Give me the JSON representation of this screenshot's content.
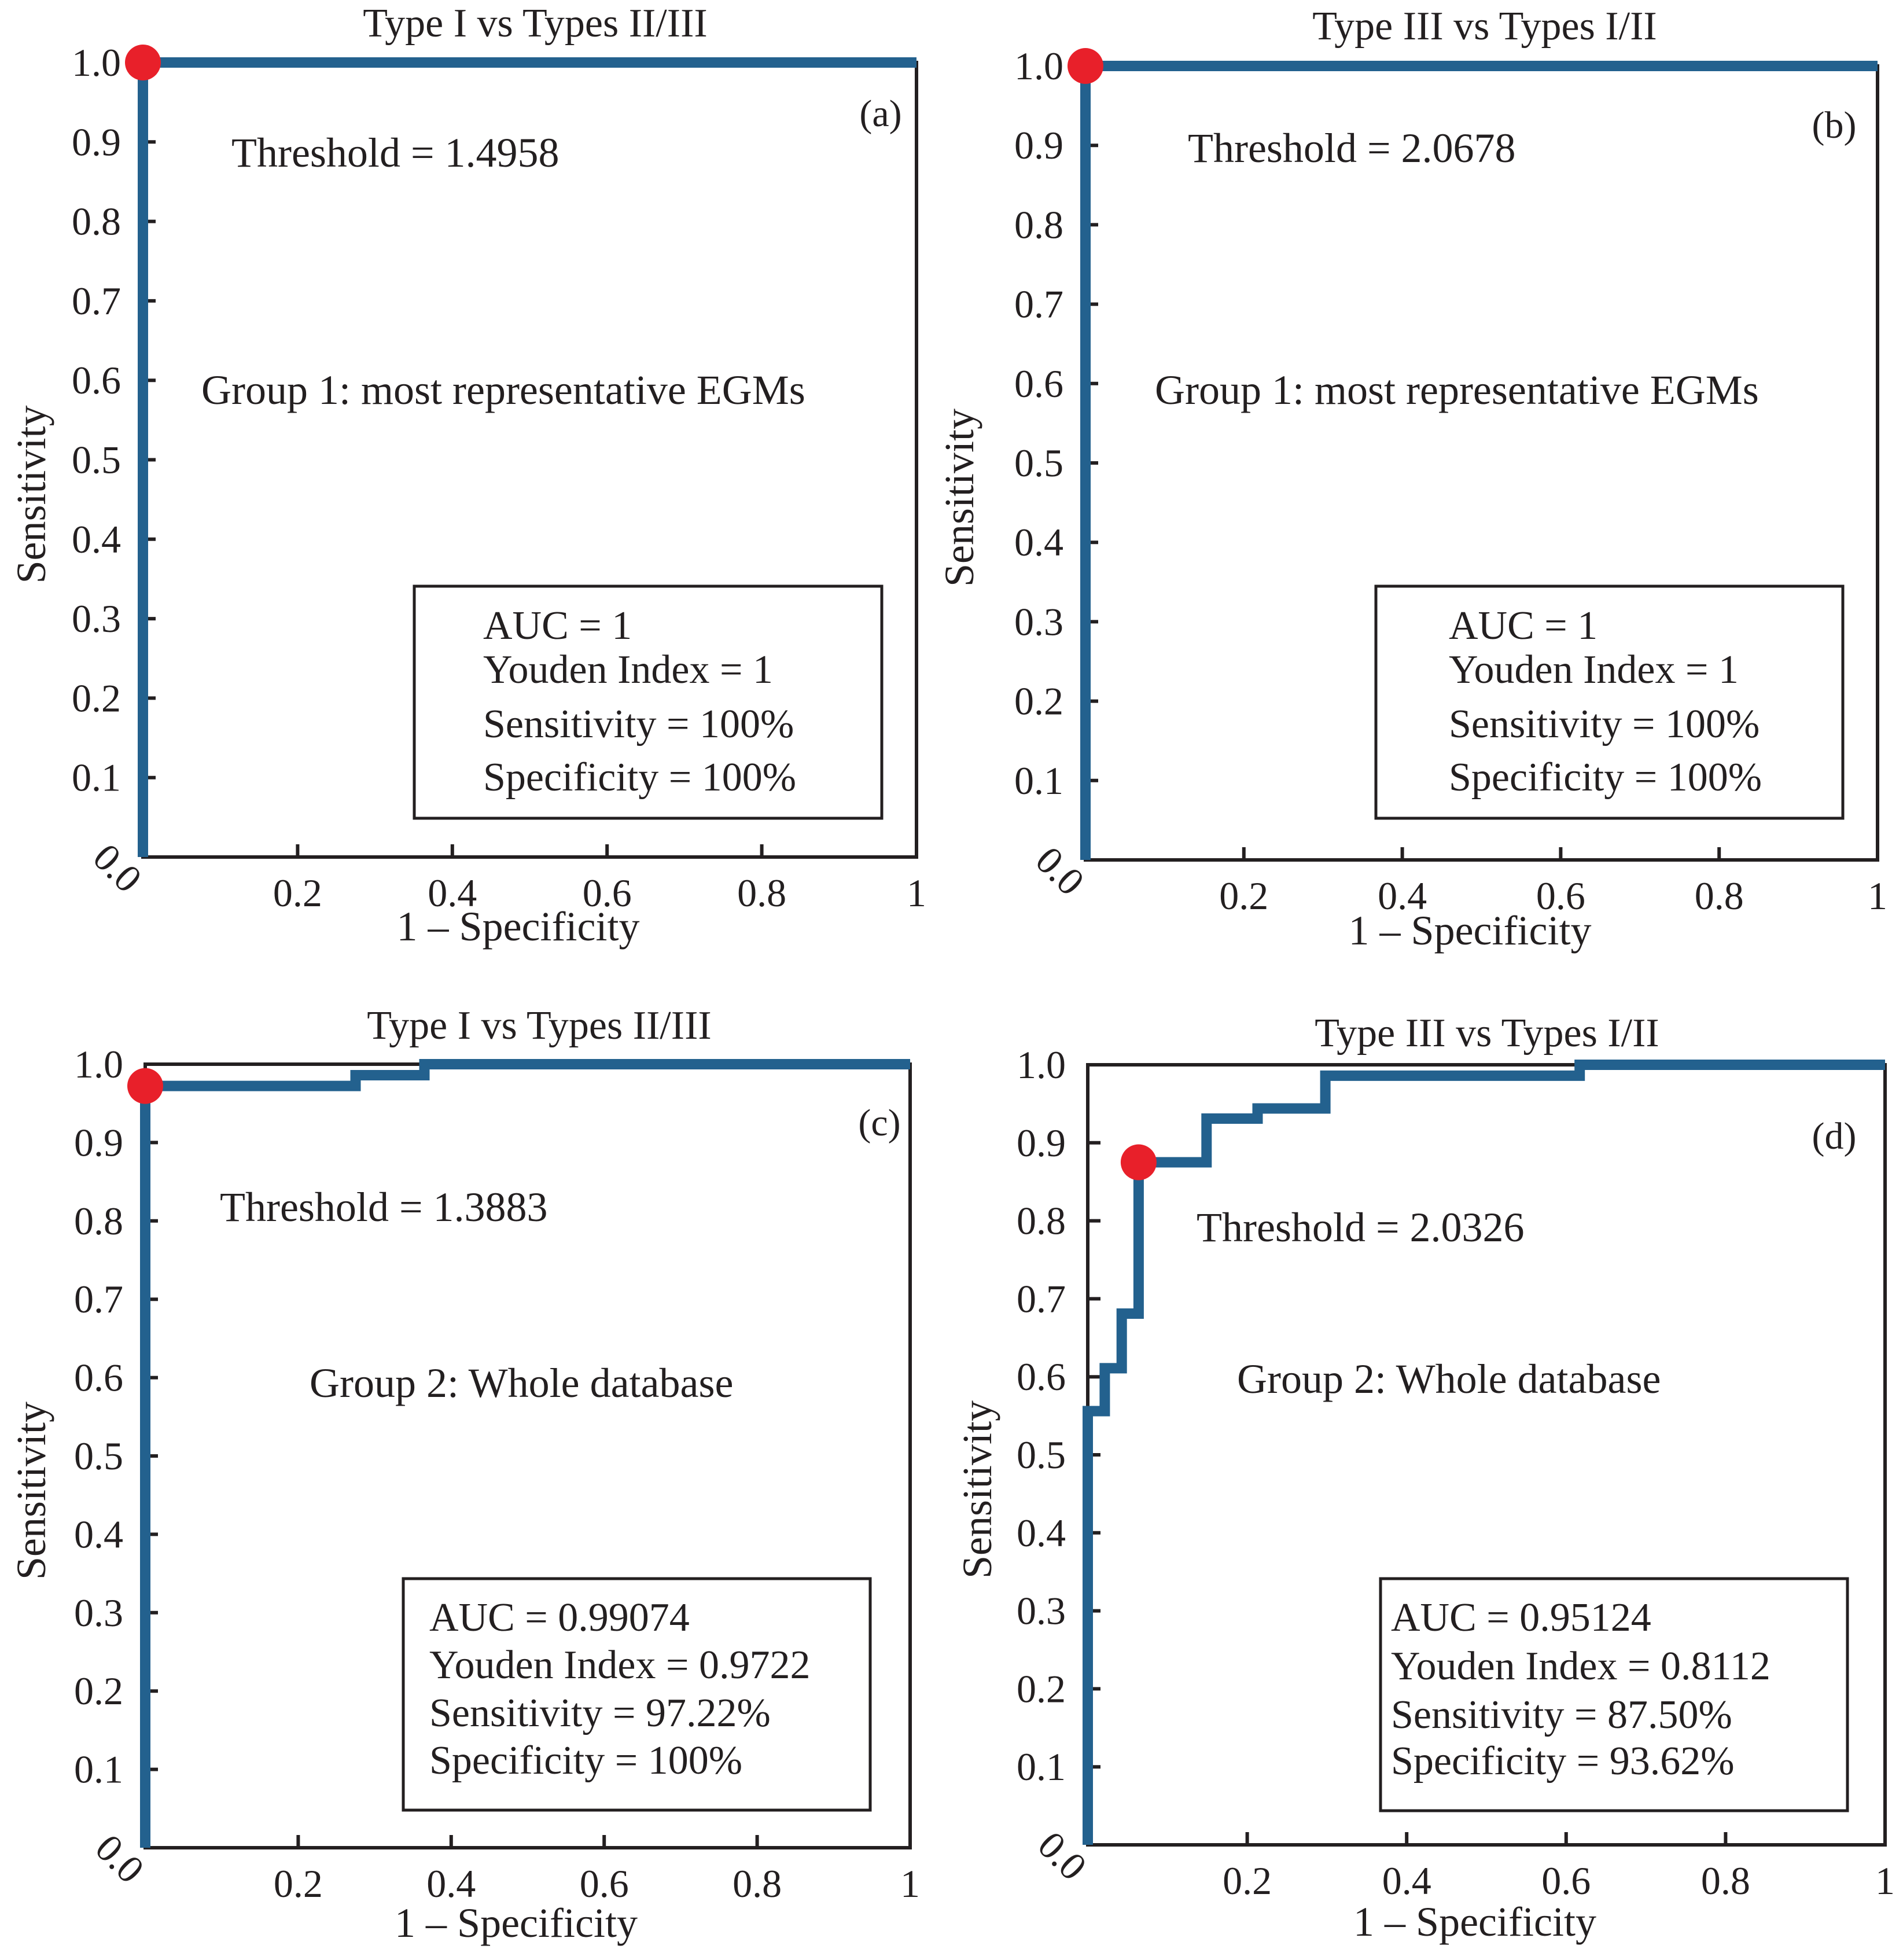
{
  "chart_data": [
    {
      "panel": "(a)",
      "type": "line",
      "title": "Type I vs Types II/III",
      "xlabel": "1 – Specificity",
      "ylabel": "Sensitivity",
      "xlim": [
        0,
        1
      ],
      "ylim": [
        0,
        1
      ],
      "x_ticks": [
        "0.0",
        "0.2",
        "0.4",
        "0.6",
        "0.8",
        "1"
      ],
      "y_ticks": [
        "0.1",
        "0.2",
        "0.3",
        "0.4",
        "0.5",
        "0.6",
        "0.7",
        "0.8",
        "0.9",
        "1.0"
      ],
      "threshold_text": "Threshold = 1.4958",
      "group_text": "Group 1: most representative EGMs",
      "stats": [
        "AUC = 1",
        "Youden Index = 1",
        "Sensitivity = 100%",
        "Specificity = 100%"
      ],
      "curve": [
        [
          0,
          0
        ],
        [
          0,
          1
        ],
        [
          1,
          1
        ]
      ],
      "optimal_point": [
        0,
        1
      ]
    },
    {
      "panel": "(b)",
      "type": "line",
      "title": "Type III vs Types I/II",
      "xlabel": "1 – Specificity",
      "ylabel": "Sensitivity",
      "xlim": [
        0,
        1
      ],
      "ylim": [
        0,
        1
      ],
      "x_ticks": [
        "0.0",
        "0.2",
        "0.4",
        "0.6",
        "0.8",
        "1"
      ],
      "y_ticks": [
        "0.1",
        "0.2",
        "0.3",
        "0.4",
        "0.5",
        "0.6",
        "0.7",
        "0.8",
        "0.9",
        "1.0"
      ],
      "threshold_text": "Threshold = 2.0678",
      "group_text": "Group 1: most representative EGMs",
      "stats": [
        "AUC = 1",
        "Youden Index = 1",
        "Sensitivity = 100%",
        "Specificity = 100%"
      ],
      "curve": [
        [
          0,
          0
        ],
        [
          0,
          1
        ],
        [
          1,
          1
        ]
      ],
      "optimal_point": [
        0,
        1
      ]
    },
    {
      "panel": "(c)",
      "type": "line",
      "title": "Type I vs Types II/III",
      "xlabel": "1 – Specificity",
      "ylabel": "Sensitivity",
      "xlim": [
        0,
        1
      ],
      "ylim": [
        0,
        1
      ],
      "x_ticks": [
        "0.0",
        "0.2",
        "0.4",
        "0.6",
        "0.8",
        "1"
      ],
      "y_ticks": [
        "0.1",
        "0.2",
        "0.3",
        "0.4",
        "0.5",
        "0.6",
        "0.7",
        "0.8",
        "0.9",
        "1.0"
      ],
      "threshold_text": "Threshold = 1.3883",
      "group_text": "Group 2: Whole database",
      "stats": [
        "AUC = 0.99074",
        "Youden Index = 0.9722",
        "Sensitivity = 97.22%",
        "Specificity = 100%"
      ],
      "curve": [
        [
          0,
          0
        ],
        [
          0,
          0.9722
        ],
        [
          0.275,
          0.9722
        ],
        [
          0.275,
          0.986
        ],
        [
          0.365,
          0.986
        ],
        [
          0.365,
          1
        ],
        [
          1,
          1
        ]
      ],
      "optimal_point": [
        0,
        0.9722
      ]
    },
    {
      "panel": "(d)",
      "type": "line",
      "title": "Type III vs Types I/II",
      "xlabel": "1 – Specificity",
      "ylabel": "Sensitivity",
      "xlim": [
        0,
        1
      ],
      "ylim": [
        0,
        1
      ],
      "x_ticks": [
        "0.0",
        "0.2",
        "0.4",
        "0.6",
        "0.8",
        "1"
      ],
      "y_ticks": [
        "0.1",
        "0.2",
        "0.3",
        "0.4",
        "0.5",
        "0.6",
        "0.7",
        "0.8",
        "0.9",
        "1.0"
      ],
      "threshold_text": "Threshold = 2.0326",
      "group_text": "Group 2: Whole database",
      "stats": [
        "AUC = 0.95124",
        "Youden Index = 0.8112",
        "Sensitivity = 87.50%",
        "Specificity = 93.62%"
      ],
      "curve": [
        [
          0,
          0
        ],
        [
          0,
          0.556
        ],
        [
          0.0213,
          0.556
        ],
        [
          0.0213,
          0.611
        ],
        [
          0.0426,
          0.611
        ],
        [
          0.0426,
          0.681
        ],
        [
          0.0638,
          0.681
        ],
        [
          0.0638,
          0.875
        ],
        [
          0.149,
          0.875
        ],
        [
          0.149,
          0.931
        ],
        [
          0.213,
          0.931
        ],
        [
          0.213,
          0.944
        ],
        [
          0.298,
          0.944
        ],
        [
          0.298,
          0.986
        ],
        [
          0.617,
          0.986
        ],
        [
          0.617,
          1
        ],
        [
          1,
          1
        ]
      ],
      "optimal_point": [
        0.0638,
        0.875
      ]
    }
  ]
}
